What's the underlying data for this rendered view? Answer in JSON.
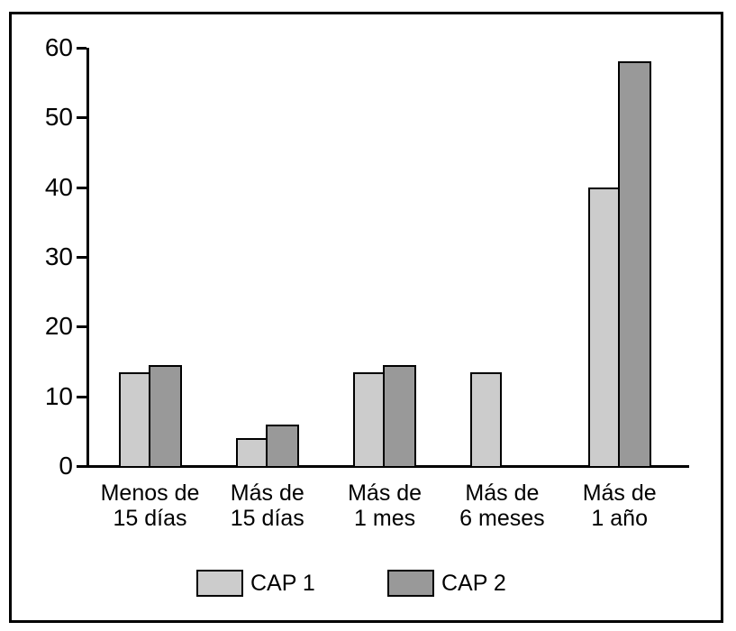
{
  "chart_data": {
    "type": "bar",
    "title": "",
    "xlabel": "",
    "ylabel": "",
    "categories": [
      "Menos de\n15 días",
      "Más de\n15 días",
      "Más de\n1 mes",
      "Más de\n6 meses",
      "Más de\n1 año"
    ],
    "series": [
      {
        "name": "CAP 1",
        "color": "#cccccc",
        "values": [
          13.5,
          4,
          13.5,
          13.5,
          40
        ]
      },
      {
        "name": "CAP 2",
        "color": "#999999",
        "values": [
          14.5,
          6,
          14.5,
          0,
          58
        ]
      }
    ],
    "ylim": [
      0,
      60
    ],
    "yticks": [
      0,
      10,
      20,
      30,
      40,
      50,
      60
    ],
    "grid": false,
    "legend_position": "bottom",
    "axis_color": "#000000",
    "bar_outline_color": "#000000",
    "frame_color": "#000000",
    "background_color": "#ffffff"
  }
}
